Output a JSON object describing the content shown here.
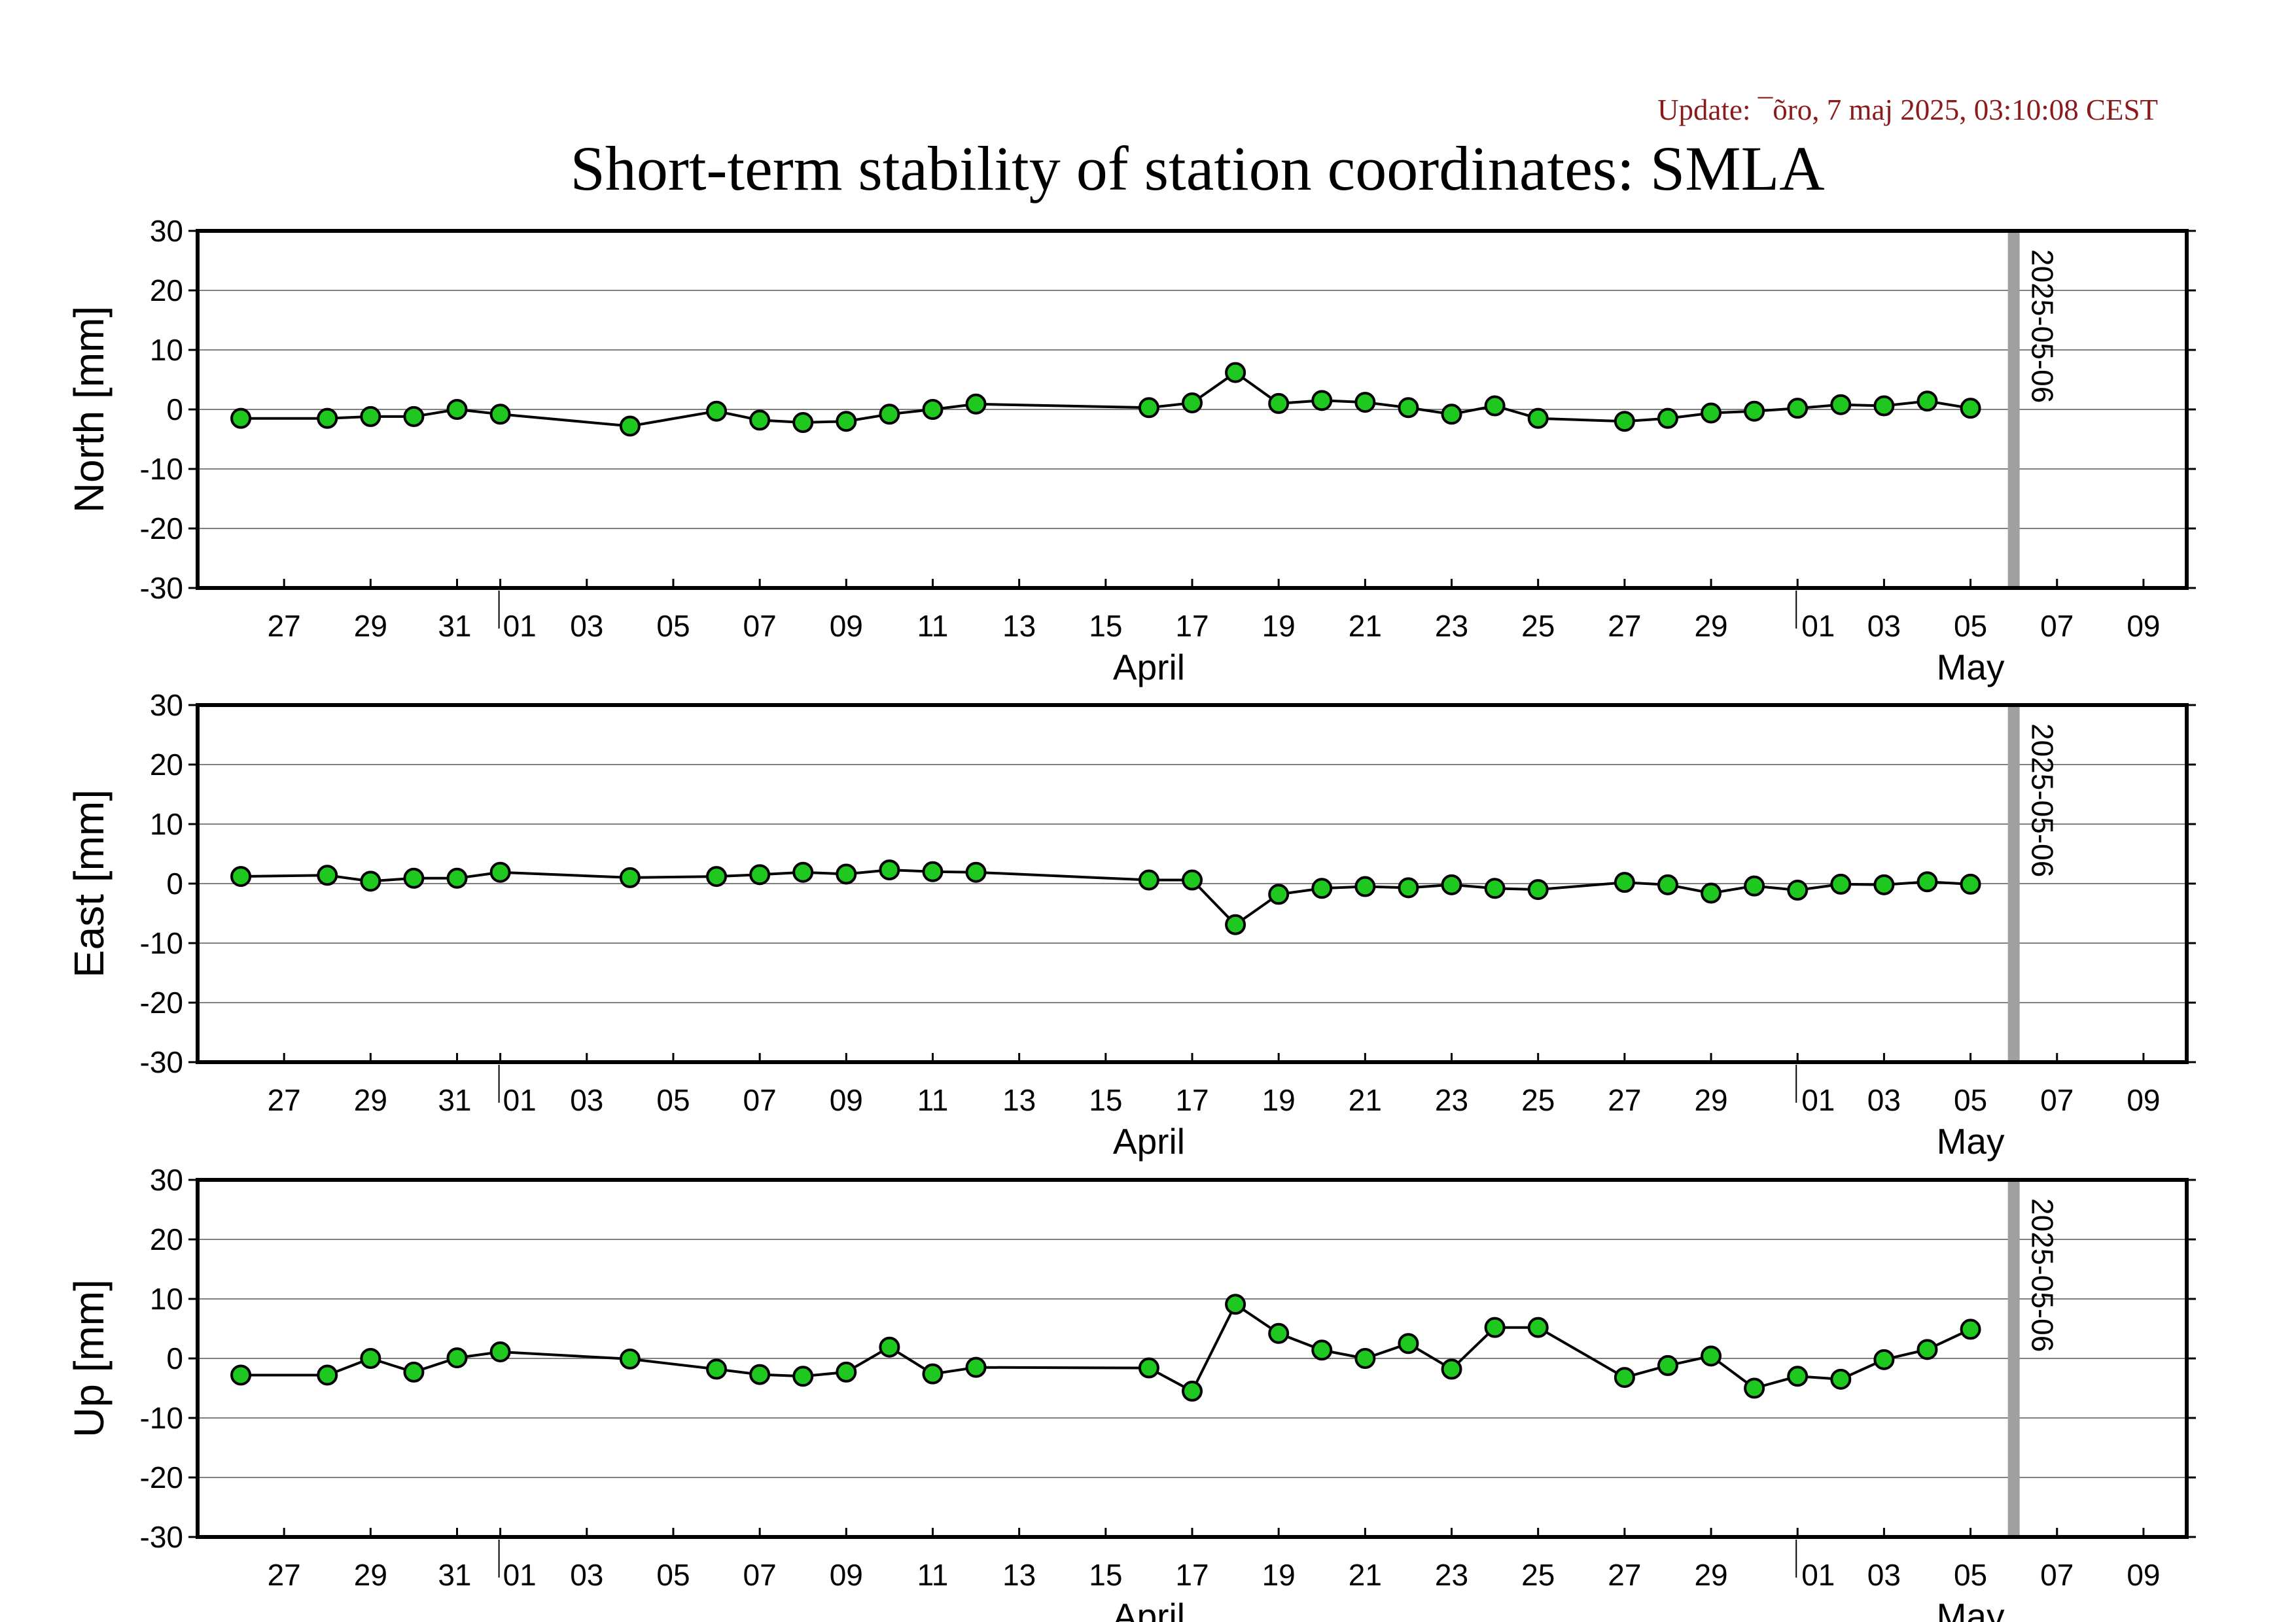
{
  "header": {
    "update": "Update: ¯õro, 7 maj 2025, 03:10:08 CEST",
    "title": "Short-term stability of station coordinates: SMLA"
  },
  "colors": {
    "point_fill": "#1ec81e",
    "line": "#000000",
    "grid": "#808080",
    "marker_line": "#a0a0a0",
    "update_text": "#8b1a1a"
  },
  "chart_data": [
    {
      "type": "line",
      "ylabel": "North [mm]",
      "ylim": [
        -30,
        30
      ],
      "yticks": [
        30,
        20,
        10,
        0,
        -10,
        -20,
        -30
      ],
      "x_ticks": [
        {
          "date": "2025-03-27",
          "label": "27"
        },
        {
          "date": "2025-03-29",
          "label": "29"
        },
        {
          "date": "2025-03-31",
          "label": "31"
        },
        {
          "date": "2025-04-01",
          "label": "01"
        },
        {
          "date": "2025-04-03",
          "label": "03"
        },
        {
          "date": "2025-04-05",
          "label": "05"
        },
        {
          "date": "2025-04-07",
          "label": "07"
        },
        {
          "date": "2025-04-09",
          "label": "09"
        },
        {
          "date": "2025-04-11",
          "label": "11"
        },
        {
          "date": "2025-04-13",
          "label": "13"
        },
        {
          "date": "2025-04-15",
          "label": "15"
        },
        {
          "date": "2025-04-17",
          "label": "17"
        },
        {
          "date": "2025-04-19",
          "label": "19"
        },
        {
          "date": "2025-04-21",
          "label": "21"
        },
        {
          "date": "2025-04-23",
          "label": "23"
        },
        {
          "date": "2025-04-25",
          "label": "25"
        },
        {
          "date": "2025-04-27",
          "label": "27"
        },
        {
          "date": "2025-04-29",
          "label": "29"
        },
        {
          "date": "2025-05-01",
          "label": "01"
        },
        {
          "date": "2025-05-03",
          "label": "03"
        },
        {
          "date": "2025-05-05",
          "label": "05"
        },
        {
          "date": "2025-05-07",
          "label": "07"
        },
        {
          "date": "2025-05-09",
          "label": "09"
        }
      ],
      "month_labels": [
        {
          "date": "2025-04-16",
          "label": "April"
        },
        {
          "date": "2025-05-05",
          "label": "May"
        }
      ],
      "month_boundaries": [
        "2025-04-01",
        "2025-05-01"
      ],
      "x_range": [
        "2025-03-25",
        "2025-05-10"
      ],
      "marker": {
        "date": "2025-05-06",
        "label": "2025-05-06"
      },
      "x": [
        "2025-03-26",
        "2025-03-28",
        "2025-03-29",
        "2025-03-30",
        "2025-03-31",
        "2025-04-01",
        "2025-04-04",
        "2025-04-06",
        "2025-04-07",
        "2025-04-08",
        "2025-04-09",
        "2025-04-10",
        "2025-04-11",
        "2025-04-12",
        "2025-04-16",
        "2025-04-17",
        "2025-04-18",
        "2025-04-19",
        "2025-04-20",
        "2025-04-21",
        "2025-04-22",
        "2025-04-23",
        "2025-04-24",
        "2025-04-25",
        "2025-04-27",
        "2025-04-28",
        "2025-04-29",
        "2025-04-30",
        "2025-05-01",
        "2025-05-02",
        "2025-05-03",
        "2025-05-04",
        "2025-05-05"
      ],
      "y": [
        -1.5,
        -1.5,
        -1.2,
        -1.2,
        0,
        -0.8,
        -2.8,
        -0.3,
        -1.8,
        -2.2,
        -2,
        -0.8,
        0,
        0.9,
        0.3,
        1.1,
        6.2,
        1,
        1.5,
        1.2,
        0.3,
        -0.8,
        0.6,
        -1.5,
        -2,
        -1.5,
        -0.6,
        -0.3,
        0.2,
        0.8,
        0.6,
        1.4,
        0.2
      ]
    },
    {
      "type": "line",
      "ylabel": "East [mm]",
      "ylim": [
        -30,
        30
      ],
      "yticks": [
        30,
        20,
        10,
        0,
        -10,
        -20,
        -30
      ],
      "x_ticks": "same",
      "marker": {
        "date": "2025-05-06",
        "label": "2025-05-06"
      },
      "x": [
        "2025-03-26",
        "2025-03-28",
        "2025-03-29",
        "2025-03-30",
        "2025-03-31",
        "2025-04-01",
        "2025-04-04",
        "2025-04-06",
        "2025-04-07",
        "2025-04-08",
        "2025-04-09",
        "2025-04-10",
        "2025-04-11",
        "2025-04-12",
        "2025-04-16",
        "2025-04-17",
        "2025-04-18",
        "2025-04-19",
        "2025-04-20",
        "2025-04-21",
        "2025-04-22",
        "2025-04-23",
        "2025-04-24",
        "2025-04-25",
        "2025-04-27",
        "2025-04-28",
        "2025-04-29",
        "2025-04-30",
        "2025-05-01",
        "2025-05-02",
        "2025-05-03",
        "2025-05-04",
        "2025-05-05"
      ],
      "y": [
        1.2,
        1.4,
        0.4,
        0.9,
        0.9,
        1.9,
        1,
        1.2,
        1.5,
        1.9,
        1.6,
        2.3,
        2,
        1.9,
        0.6,
        0.6,
        -6.9,
        -1.8,
        -0.8,
        -0.5,
        -0.7,
        -0.2,
        -0.8,
        -1,
        0.2,
        -0.2,
        -1.6,
        -0.4,
        -1.1,
        -0.1,
        -0.2,
        0.3,
        -0.1
      ]
    },
    {
      "type": "line",
      "ylabel": "Up [mm]",
      "ylim": [
        -30,
        30
      ],
      "yticks": [
        30,
        20,
        10,
        0,
        -10,
        -20,
        -30
      ],
      "x_ticks": "same",
      "marker": {
        "date": "2025-05-06",
        "label": "2025-05-06"
      },
      "x": [
        "2025-03-26",
        "2025-03-28",
        "2025-03-29",
        "2025-03-30",
        "2025-03-31",
        "2025-04-01",
        "2025-04-04",
        "2025-04-06",
        "2025-04-07",
        "2025-04-08",
        "2025-04-09",
        "2025-04-10",
        "2025-04-11",
        "2025-04-12",
        "2025-04-16",
        "2025-04-17",
        "2025-04-18",
        "2025-04-19",
        "2025-04-20",
        "2025-04-21",
        "2025-04-22",
        "2025-04-23",
        "2025-04-24",
        "2025-04-25",
        "2025-04-27",
        "2025-04-28",
        "2025-04-29",
        "2025-04-30",
        "2025-05-01",
        "2025-05-02",
        "2025-05-03",
        "2025-05-04",
        "2025-05-05"
      ],
      "y": [
        -2.8,
        -2.8,
        0,
        -2.3,
        0.1,
        1.1,
        -0.1,
        -1.8,
        -2.7,
        -3,
        -2.3,
        1.9,
        -2.6,
        -1.5,
        -1.6,
        -5.5,
        9.1,
        4.2,
        1.4,
        0,
        2.5,
        -1.8,
        5.2,
        5.2,
        -3.2,
        -1.2,
        0.4,
        -5,
        -3,
        -3.5,
        -0.2,
        1.5,
        4.9
      ]
    }
  ]
}
